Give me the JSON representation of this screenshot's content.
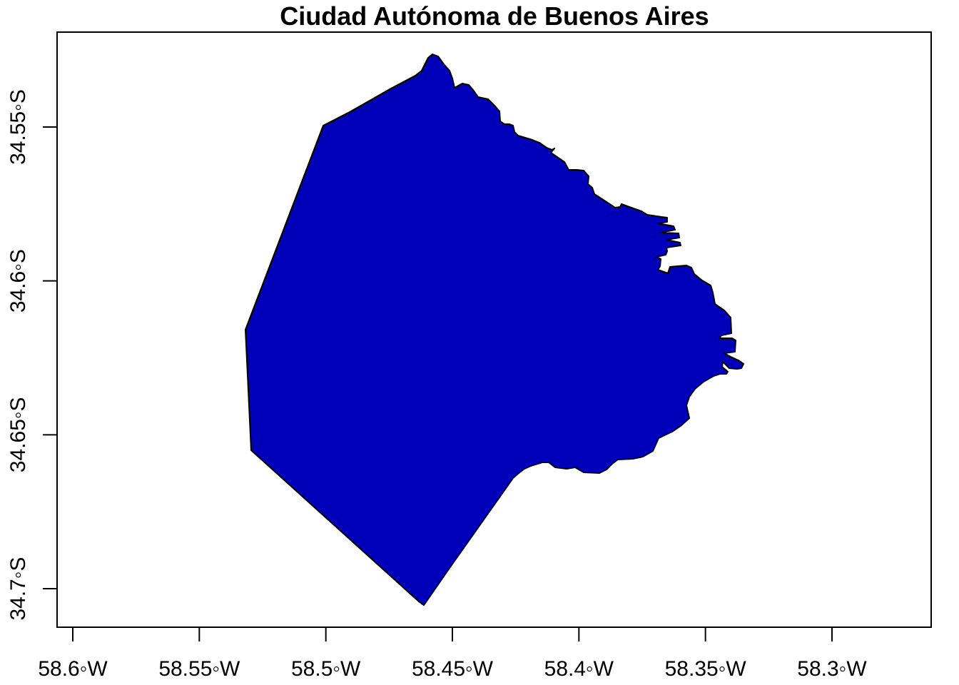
{
  "title": "Ciudad Autónoma de Buenos Aires",
  "x_axis": {
    "ticks": [
      {
        "value": -58.6,
        "label": "58.6◦W"
      },
      {
        "value": -58.55,
        "label": "58.55◦W"
      },
      {
        "value": -58.5,
        "label": "58.5◦W"
      },
      {
        "value": -58.45,
        "label": "58.45◦W"
      },
      {
        "value": -58.4,
        "label": "58.4◦W"
      },
      {
        "value": -58.35,
        "label": "58.35◦W"
      },
      {
        "value": -58.3,
        "label": "58.3◦W"
      }
    ]
  },
  "y_axis": {
    "ticks": [
      {
        "value": -34.55,
        "label": "34.55◦S"
      },
      {
        "value": -34.6,
        "label": "34.6◦S"
      },
      {
        "value": -34.65,
        "label": "34.65◦S"
      },
      {
        "value": -34.7,
        "label": "34.7◦S"
      }
    ]
  },
  "colors": {
    "fill": "#0000B8",
    "stroke": "#000000"
  }
}
